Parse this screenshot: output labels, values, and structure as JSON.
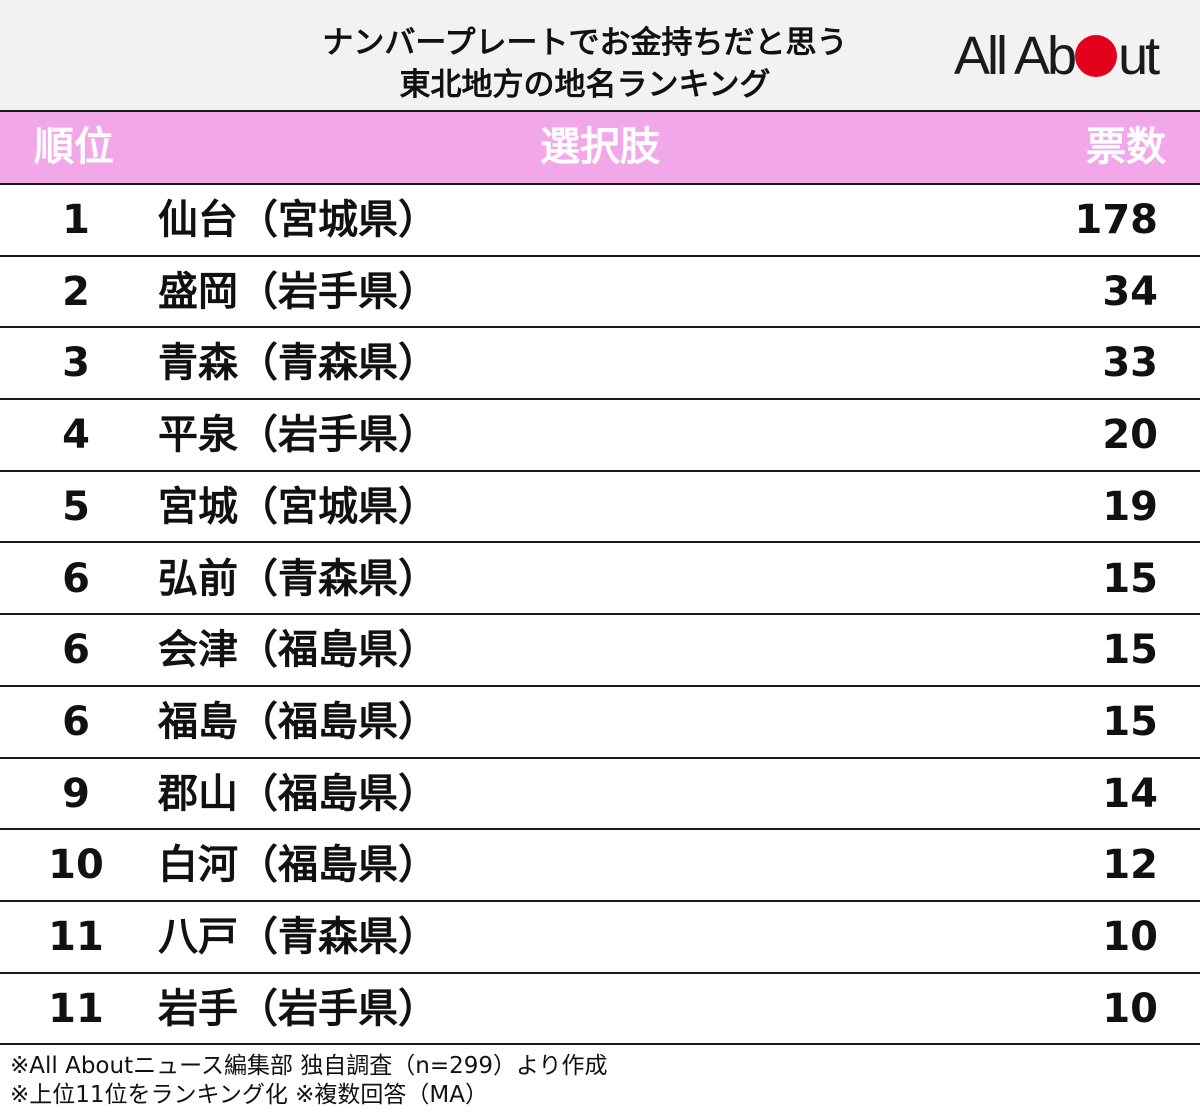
{
  "title": {
    "line1": "ナンバープレートでお金持ちだと思う",
    "line2": "東北地方の地名ランキング"
  },
  "logo": {
    "before": "All Ab",
    "after": "ut",
    "dot_color": "#e2001a"
  },
  "colors": {
    "header_band": "#f2a7e8",
    "header_bg": "#f2f2f2"
  },
  "chart_data": {
    "type": "table",
    "columns": [
      "順位",
      "選択肢",
      "票数"
    ],
    "rows": [
      {
        "rank": "1",
        "choice": "仙台（宮城県）",
        "votes": 178
      },
      {
        "rank": "2",
        "choice": "盛岡（岩手県）",
        "votes": 34
      },
      {
        "rank": "3",
        "choice": "青森（青森県）",
        "votes": 33
      },
      {
        "rank": "4",
        "choice": "平泉（岩手県）",
        "votes": 20
      },
      {
        "rank": "5",
        "choice": "宮城（宮城県）",
        "votes": 19
      },
      {
        "rank": "6",
        "choice": "弘前（青森県）",
        "votes": 15
      },
      {
        "rank": "6",
        "choice": "会津（福島県）",
        "votes": 15
      },
      {
        "rank": "6",
        "choice": "福島（福島県）",
        "votes": 15
      },
      {
        "rank": "9",
        "choice": "郡山（福島県）",
        "votes": 14
      },
      {
        "rank": "10",
        "choice": "白河（福島県）",
        "votes": 12
      },
      {
        "rank": "11",
        "choice": "八戸（青森県）",
        "votes": 10
      },
      {
        "rank": "11",
        "choice": "岩手（岩手県）",
        "votes": 10
      }
    ]
  },
  "footer": {
    "line1": "※All Aboutニュース編集部 独自調査（n=299）より作成",
    "line2": "※上位11位をランキング化 ※複数回答（MA）"
  }
}
